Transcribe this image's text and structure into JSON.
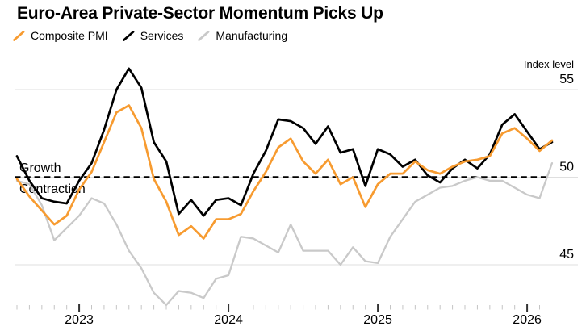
{
  "title": "Euro-Area Private-Sector Momentum Picks Up",
  "zone_labels": {
    "growth": "Growth",
    "contraction": "Contraction"
  },
  "axis": {
    "y_title": "Index level",
    "y_ticks": [
      {
        "value": 55,
        "label": "55"
      },
      {
        "value": 50,
        "label": "50"
      },
      {
        "value": 45,
        "label": "45"
      }
    ],
    "x_years": [
      {
        "label": "2023",
        "tick_month_index": 5
      },
      {
        "label": "2024",
        "tick_month_index": 17
      },
      {
        "label": "2025",
        "tick_month_index": 29
      },
      {
        "label": "2026",
        "tick_month_index": 41
      }
    ]
  },
  "colors": {
    "background": "#FFFFFF",
    "gridline": "#DFDFDF",
    "reference_line": "#000000",
    "minor_tick": "#C4C4C4",
    "year_tick": "#333333"
  },
  "chart_data": {
    "type": "line",
    "title": "Euro-Area Private-Sector Momentum Picks Up",
    "ylabel": "Index level",
    "ylim": [
      42.5,
      56.5
    ],
    "y_gridlines": [
      45,
      50,
      55
    ],
    "reference_line": 50,
    "legend_position": "top",
    "x": [
      "Jul 2022",
      "Aug 2022",
      "Sep 2022",
      "Oct 2022",
      "Nov 2022",
      "Dec 2022",
      "Jan 2023",
      "Feb 2023",
      "Mar 2023",
      "Apr 2023",
      "May 2023",
      "Jun 2023",
      "Jul 2023",
      "Aug 2023",
      "Sep 2023",
      "Oct 2023",
      "Nov 2023",
      "Dec 2023",
      "Jan 2024",
      "Feb 2024",
      "Mar 2024",
      "Apr 2024",
      "May 2024",
      "Jun 2024",
      "Jul 2024",
      "Aug 2024",
      "Sep 2024",
      "Oct 2024",
      "Nov 2024",
      "Dec 2024",
      "Jan 2025",
      "Feb 2025",
      "Mar 2025",
      "Apr 2025",
      "May 2025",
      "Jun 2025",
      "Jul 2025",
      "Aug 2025",
      "Sep 2025",
      "Oct 2025",
      "Nov 2025",
      "Dec 2025",
      "Jan 2026",
      "Feb 2026"
    ],
    "series": [
      {
        "name": "Composite PMI",
        "color": "#F79B30",
        "values": [
          49.9,
          48.9,
          48.1,
          47.3,
          47.8,
          49.3,
          50.3,
          52.0,
          53.7,
          54.1,
          52.8,
          49.9,
          48.6,
          46.7,
          47.2,
          46.5,
          47.6,
          47.6,
          47.9,
          49.2,
          50.3,
          51.7,
          52.2,
          50.9,
          50.2,
          51.0,
          49.6,
          50.0,
          48.3,
          49.6,
          50.2,
          50.2,
          50.9,
          50.4,
          50.2,
          50.6,
          50.9,
          51.0,
          51.2,
          52.5,
          52.8,
          52.2,
          51.5,
          52.1
        ]
      },
      {
        "name": "Services",
        "color": "#000000",
        "values": [
          51.2,
          49.8,
          48.8,
          48.6,
          48.5,
          49.8,
          50.8,
          52.7,
          55.0,
          56.2,
          55.1,
          52.0,
          50.9,
          47.9,
          48.7,
          47.8,
          48.7,
          48.8,
          48.4,
          50.2,
          51.5,
          53.3,
          53.2,
          52.8,
          51.9,
          52.9,
          51.4,
          51.6,
          49.5,
          51.6,
          51.3,
          50.6,
          51.0,
          50.1,
          49.7,
          50.5,
          51.0,
          50.5,
          51.3,
          53.0,
          53.6,
          52.6,
          51.6,
          52.0
        ]
      },
      {
        "name": "Manufacturing",
        "color": "#C9C9C9",
        "values": [
          49.8,
          49.6,
          48.4,
          46.4,
          47.1,
          47.8,
          48.8,
          48.5,
          47.3,
          45.8,
          44.8,
          43.4,
          42.7,
          43.5,
          43.4,
          43.1,
          44.2,
          44.4,
          46.6,
          46.5,
          46.1,
          45.7,
          47.3,
          45.8,
          45.8,
          45.8,
          45.0,
          46.0,
          45.2,
          45.1,
          46.6,
          47.6,
          48.6,
          49.0,
          49.4,
          49.5,
          49.8,
          50.0,
          49.8,
          49.8,
          49.4,
          49.0,
          48.8,
          50.8
        ]
      }
    ]
  }
}
